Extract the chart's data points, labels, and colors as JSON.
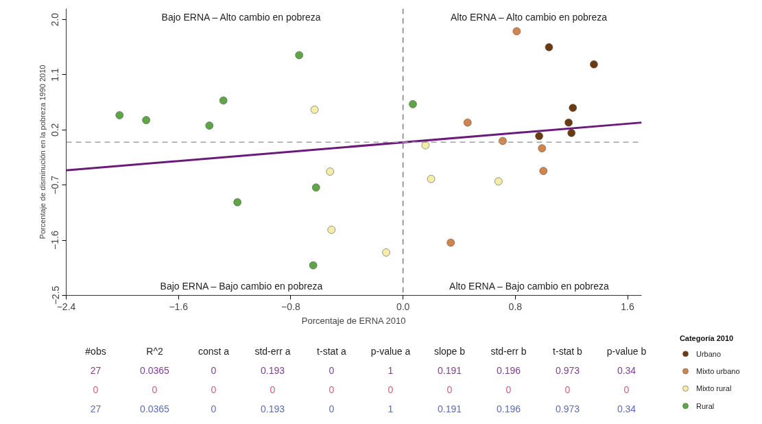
{
  "chart_data": {
    "type": "scatter",
    "xlabel": "Porcentaje de ERNA 2010",
    "ylabel": "Porcentaje de disminución en la pobreza 1990 2010",
    "legend_title": "Categoría 2010",
    "xlim": [
      -2.4,
      1.7
    ],
    "ylim": [
      -2.5,
      2.18
    ],
    "xticks": [
      -2.4,
      -1.6,
      -0.8,
      {
        "value": 0,
        "label": "0.0"
      },
      0.8,
      1.6
    ],
    "yticks": [
      {
        "value": 2,
        "label": "2.0"
      },
      1.1,
      0.2,
      -0.7,
      -1.6,
      -2.5
    ],
    "grid": false,
    "legend": "bottom right",
    "marker": "circle",
    "ref_lines": [
      {
        "axis": "x",
        "value": 0,
        "color": "#7a7a7a",
        "line_style": "dashed"
      },
      {
        "axis": "y",
        "value": 0,
        "color": "#a0a0a0",
        "line_style": "dashed"
      }
    ],
    "series": [
      {
        "name": "Urbano",
        "color": "#6b3a10",
        "x": [
          1.04,
          1.36,
          1.21,
          1.18,
          0.97,
          1.2
        ],
        "values": [
          1.55,
          1.27,
          0.56,
          0.32,
          0.1,
          0.15
        ]
      },
      {
        "name": "Mixto urbano",
        "color": "#d2844a",
        "x": [
          0.81,
          0.46,
          0.71,
          0.99,
          1.0,
          0.34
        ],
        "values": [
          1.81,
          0.32,
          0.02,
          -0.1,
          -0.47,
          -1.64
        ]
      },
      {
        "name": "Mixto rural",
        "color": "#f3eda8",
        "x": [
          -0.63,
          -0.52,
          -0.51,
          -0.12,
          0.16,
          0.2,
          0.68
        ],
        "values": [
          0.53,
          -0.48,
          -1.43,
          -1.8,
          -0.05,
          -0.6,
          -0.64
        ]
      },
      {
        "name": "Rural",
        "color": "#5ea545",
        "x": [
          -2.02,
          -1.83,
          -1.38,
          -1.28,
          -0.74,
          -0.62,
          -1.18,
          -0.64,
          0.07
        ],
        "values": [
          0.44,
          0.36,
          0.27,
          0.68,
          1.42,
          -0.74,
          -0.98,
          -2.01,
          0.62
        ]
      },
      {
        "type": "line",
        "marker": "none",
        "color": "#6a1b7a",
        "x": [
          -2.4,
          1.7
        ],
        "values": [
          -0.46,
          0.32
        ]
      }
    ],
    "annotations": [
      "Bajo ERNA – Alto cambio en pobreza",
      "Alto ERNA – Alto cambio en pobreza",
      "Bajo ERNA – Bajo cambio en pobreza",
      "Alto ERNA – Bajo cambio en pobreza",
      "#obs",
      "R^2",
      "const a",
      "std-err a",
      "t-stat a",
      "p-value a",
      "slope b",
      "std-err b",
      "t-stat b",
      "p-value b",
      "27",
      "0.0365",
      "0",
      "0.193",
      "0",
      "1",
      "0.191",
      "0.196",
      "0.973",
      "0.34",
      "0",
      "0",
      "0",
      "0",
      "0",
      "0",
      "0",
      "0",
      "0",
      "0",
      "27",
      "0.0365",
      "0",
      "0.193",
      "0",
      "1",
      "0.191",
      "0.196",
      "0.973",
      "0.34"
    ]
  }
}
